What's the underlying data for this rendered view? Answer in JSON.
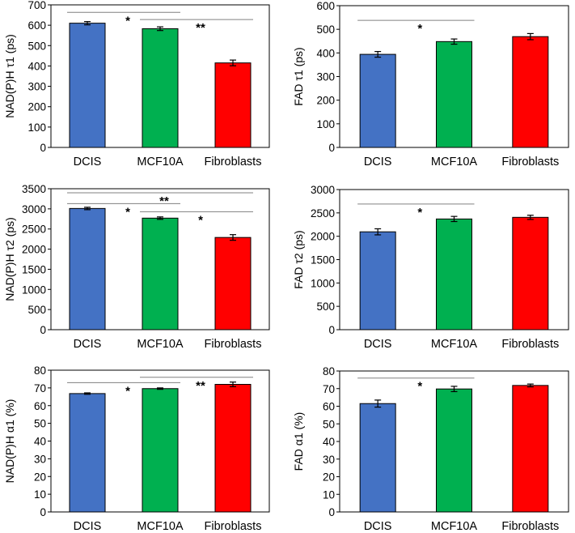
{
  "chart_data": [
    {
      "type": "bar",
      "ylabel": "NAD(P)H τ1 (ps)",
      "categories": [
        "DCIS",
        "MCF10A",
        "Fibroblasts"
      ],
      "values": [
        610,
        583,
        415
      ],
      "errors": [
        8,
        9,
        14
      ],
      "colors": [
        "#4472c4",
        "#00b050",
        "#ff0000"
      ],
      "ylim": [
        0,
        700
      ],
      "yticks": [
        "0",
        "100",
        "200",
        "300",
        "400",
        "500",
        "600",
        "700"
      ],
      "significance": [
        {
          "from": 0,
          "to": 1,
          "label": "*",
          "y": 663
        },
        {
          "from": 1,
          "to": 2,
          "label": "**",
          "y": 628
        }
      ]
    },
    {
      "type": "bar",
      "ylabel": "FAD τ1 (ps)",
      "categories": [
        "DCIS",
        "MCF10A",
        "Fibroblasts"
      ],
      "values": [
        394,
        448,
        469
      ],
      "errors": [
        12,
        11,
        13
      ],
      "colors": [
        "#4472c4",
        "#00b050",
        "#ff0000"
      ],
      "ylim": [
        0,
        600
      ],
      "yticks": [
        "0",
        "100",
        "200",
        "300",
        "400",
        "500",
        "600"
      ],
      "significance": [
        {
          "from": 0,
          "to": 1,
          "label": "*",
          "y": 538
        }
      ]
    },
    {
      "type": "bar",
      "ylabel": "NAD(P)H τ2 (ps)",
      "categories": [
        "DCIS",
        "MCF10A",
        "Fibroblasts"
      ],
      "values": [
        3010,
        2770,
        2290
      ],
      "errors": [
        30,
        30,
        70
      ],
      "colors": [
        "#4472c4",
        "#00b050",
        "#ff0000"
      ],
      "ylim": [
        0,
        3500
      ],
      "yticks": [
        "0",
        "500",
        "1000",
        "1500",
        "2000",
        "2500",
        "3000",
        "3500"
      ],
      "significance": [
        {
          "from": 0,
          "to": 1,
          "label": "*",
          "y": 3130
        },
        {
          "from": 0,
          "to": 2,
          "label": "**",
          "y": 3400
        },
        {
          "from": 1,
          "to": 2,
          "label": "*",
          "y": 2930
        }
      ]
    },
    {
      "type": "bar",
      "ylabel": "FAD τ2 (ps)",
      "categories": [
        "DCIS",
        "MCF10A",
        "Fibroblasts"
      ],
      "values": [
        2095,
        2370,
        2405
      ],
      "errors": [
        65,
        55,
        45
      ],
      "colors": [
        "#4472c4",
        "#00b050",
        "#ff0000"
      ],
      "ylim": [
        0,
        3000
      ],
      "yticks": [
        "0",
        "500",
        "1000",
        "1500",
        "2000",
        "2500",
        "3000"
      ],
      "significance": [
        {
          "from": 0,
          "to": 1,
          "label": "*",
          "y": 2690
        }
      ]
    },
    {
      "type": "bar",
      "ylabel": "NAD(P)H α1 (%)",
      "categories": [
        "DCIS",
        "MCF10A",
        "Fibroblasts"
      ],
      "values": [
        66.8,
        69.6,
        72.0
      ],
      "errors": [
        0.4,
        0.4,
        1.3
      ],
      "colors": [
        "#4472c4",
        "#00b050",
        "#ff0000"
      ],
      "ylim": [
        0,
        80
      ],
      "yticks": [
        "0",
        "10",
        "20",
        "30",
        "40",
        "50",
        "60",
        "70",
        "80"
      ],
      "significance": [
        {
          "from": 0,
          "to": 1,
          "label": "*",
          "y": 73
        },
        {
          "from": 1,
          "to": 2,
          "label": "**",
          "y": 76
        }
      ]
    },
    {
      "type": "bar",
      "ylabel": "FAD α1 (%)",
      "categories": [
        "DCIS",
        "MCF10A",
        "Fibroblasts"
      ],
      "values": [
        61.5,
        69.8,
        71.8
      ],
      "errors": [
        2.0,
        1.5,
        0.8
      ],
      "colors": [
        "#4472c4",
        "#00b050",
        "#ff0000"
      ],
      "ylim": [
        0,
        80
      ],
      "yticks": [
        "0",
        "10",
        "20",
        "30",
        "40",
        "50",
        "60",
        "70",
        "80"
      ],
      "significance": [
        {
          "from": 0,
          "to": 1,
          "label": "*",
          "y": 76
        }
      ]
    }
  ]
}
